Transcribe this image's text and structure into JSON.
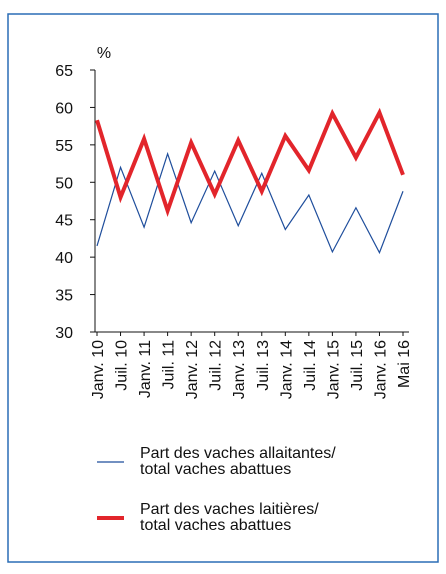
{
  "chart_data": {
    "type": "line",
    "y_unit": "%",
    "categories": [
      "Janv. 10",
      "Juil. 10",
      "Janv. 11",
      "Juil. 11",
      "Janv. 12",
      "Juil. 12",
      "Janv. 13",
      "Juil. 13",
      "Janv. 14",
      "Juil. 14",
      "Janv. 15",
      "Juil. 15",
      "Janv. 16",
      "Mai 16"
    ],
    "series": [
      {
        "name": "Part des vaches allaitantes/\ntotal vaches abattues",
        "color": "#1f4e9c",
        "width": 1.2,
        "values": [
          41.5,
          52,
          44,
          53.8,
          44.6,
          51.5,
          44.2,
          51.2,
          43.7,
          48.3,
          40.7,
          46.6,
          40.6,
          48.8
        ]
      },
      {
        "name": "Part des vaches laitières/\ntotal vaches abattues",
        "color": "#e2252b",
        "width": 4,
        "values": [
          58.3,
          48,
          55.8,
          46.2,
          55.3,
          48.4,
          55.6,
          48.8,
          56.2,
          51.6,
          59.2,
          53.3,
          59.3,
          51
        ]
      }
    ],
    "ylim": [
      30,
      65
    ],
    "yticks": [
      30,
      35,
      40,
      45,
      50,
      55,
      60,
      65
    ],
    "grid": false
  }
}
